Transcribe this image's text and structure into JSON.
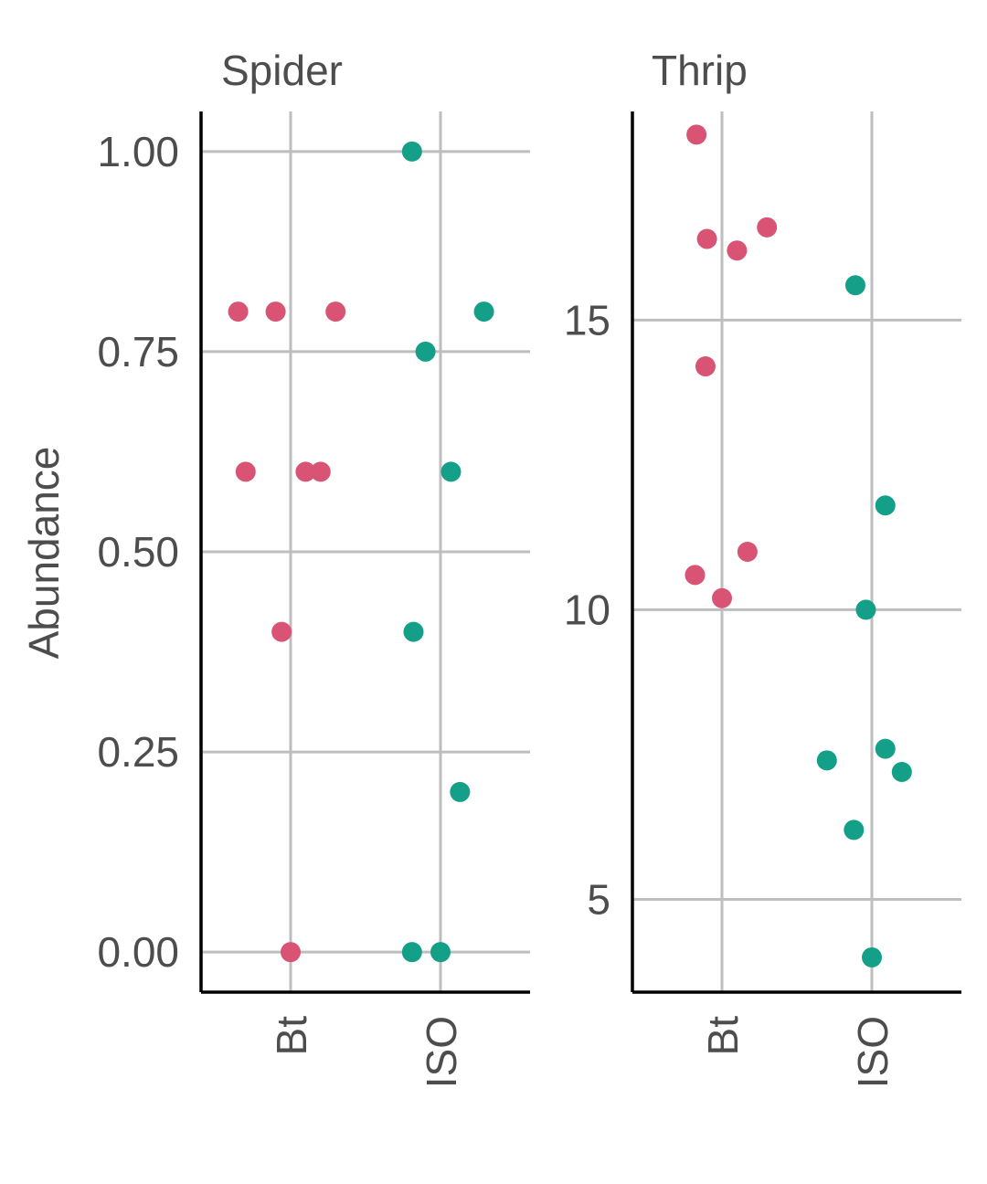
{
  "chart_data": {
    "type": "scatter",
    "ylabel": "Abundance",
    "colors": {
      "Bt": "#d95474",
      "ISO": "#14a088"
    },
    "grid": true,
    "panels": [
      {
        "title": "Spider",
        "categories": [
          "Bt",
          "ISO"
        ],
        "ylim": [
          -0.05,
          1.05
        ],
        "yticks": [
          0.0,
          0.25,
          0.5,
          0.75,
          1.0
        ],
        "ytick_labels": [
          "0.00",
          "0.25",
          "0.50",
          "0.75",
          "1.00"
        ],
        "points": [
          {
            "group": "Bt",
            "jitter": -0.35,
            "y": 0.8
          },
          {
            "group": "Bt",
            "jitter": -0.1,
            "y": 0.8
          },
          {
            "group": "Bt",
            "jitter": 0.3,
            "y": 0.8
          },
          {
            "group": "Bt",
            "jitter": -0.3,
            "y": 0.6
          },
          {
            "group": "Bt",
            "jitter": 0.1,
            "y": 0.6
          },
          {
            "group": "Bt",
            "jitter": 0.2,
            "y": 0.6
          },
          {
            "group": "Bt",
            "jitter": -0.06,
            "y": 0.4
          },
          {
            "group": "Bt",
            "jitter": 0.0,
            "y": 0.0
          },
          {
            "group": "ISO",
            "jitter": -0.19,
            "y": 1.0
          },
          {
            "group": "ISO",
            "jitter": 0.29,
            "y": 0.8
          },
          {
            "group": "ISO",
            "jitter": -0.1,
            "y": 0.75
          },
          {
            "group": "ISO",
            "jitter": 0.07,
            "y": 0.6
          },
          {
            "group": "ISO",
            "jitter": -0.18,
            "y": 0.4
          },
          {
            "group": "ISO",
            "jitter": 0.13,
            "y": 0.2
          },
          {
            "group": "ISO",
            "jitter": -0.19,
            "y": 0.0
          },
          {
            "group": "ISO",
            "jitter": 0.0,
            "y": 0.0
          }
        ]
      },
      {
        "title": "Thrip",
        "categories": [
          "Bt",
          "ISO"
        ],
        "ylim": [
          3.4,
          18.6
        ],
        "yticks": [
          5,
          10,
          15
        ],
        "ytick_labels": [
          "5",
          "10",
          "15"
        ],
        "points": [
          {
            "group": "Bt",
            "jitter": -0.17,
            "y": 18.2
          },
          {
            "group": "Bt",
            "jitter": -0.1,
            "y": 16.4
          },
          {
            "group": "Bt",
            "jitter": 0.1,
            "y": 16.2
          },
          {
            "group": "Bt",
            "jitter": 0.3,
            "y": 16.6
          },
          {
            "group": "Bt",
            "jitter": -0.11,
            "y": 14.2
          },
          {
            "group": "Bt",
            "jitter": 0.17,
            "y": 11.0
          },
          {
            "group": "Bt",
            "jitter": -0.18,
            "y": 10.6
          },
          {
            "group": "Bt",
            "jitter": 0.0,
            "y": 10.2
          },
          {
            "group": "ISO",
            "jitter": -0.11,
            "y": 15.6
          },
          {
            "group": "ISO",
            "jitter": 0.09,
            "y": 11.8
          },
          {
            "group": "ISO",
            "jitter": -0.04,
            "y": 10.0
          },
          {
            "group": "ISO",
            "jitter": 0.09,
            "y": 7.6
          },
          {
            "group": "ISO",
            "jitter": 0.2,
            "y": 7.2
          },
          {
            "group": "ISO",
            "jitter": -0.3,
            "y": 7.4
          },
          {
            "group": "ISO",
            "jitter": -0.12,
            "y": 6.2
          },
          {
            "group": "ISO",
            "jitter": 0.0,
            "y": 4.0
          }
        ]
      }
    ]
  }
}
